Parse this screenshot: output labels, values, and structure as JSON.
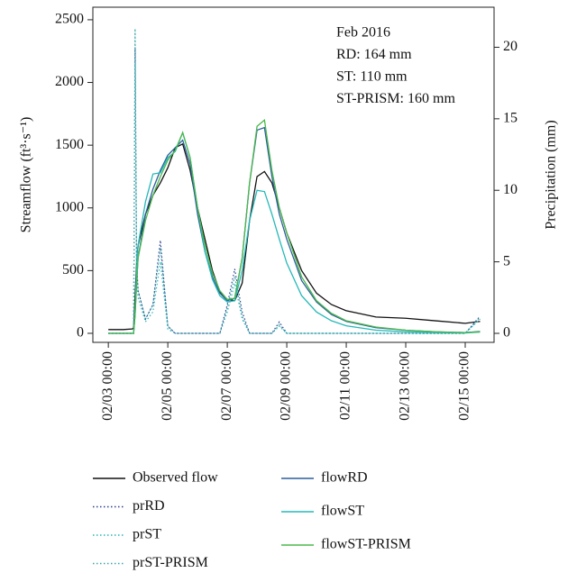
{
  "chart_data": {
    "type": "line",
    "annotations": [
      "Feb 2016",
      "RD: 164 mm",
      "ST: 110 mm",
      "ST-PRISM: 160 mm"
    ],
    "ylabel": "Streamflow (ft³·s⁻¹)",
    "y2label": "Precipitation (mm)",
    "x": [
      3.0,
      3.5,
      3.8,
      3.85,
      3.9,
      3.95,
      4.0,
      4.25,
      4.5,
      4.75,
      5.0,
      5.25,
      5.5,
      5.75,
      6.0,
      6.25,
      6.5,
      6.75,
      7.0,
      7.25,
      7.5,
      7.75,
      8.0,
      8.25,
      8.5,
      8.75,
      9.0,
      9.5,
      10.0,
      10.5,
      11.0,
      12.0,
      13.0,
      14.0,
      15.0,
      15.5
    ],
    "xlim": [
      2.48,
      15.97
    ],
    "xticks": [
      {
        "value": 3,
        "label": "02/03 00:00"
      },
      {
        "value": 5,
        "label": "02/05 00:00"
      },
      {
        "value": 7,
        "label": "02/07 00:00"
      },
      {
        "value": 9,
        "label": "02/09 00:00"
      },
      {
        "value": 11,
        "label": "02/11 00:00"
      },
      {
        "value": 13,
        "label": "02/13 00:00"
      },
      {
        "value": 15,
        "label": "02/15 00:00"
      }
    ],
    "ylim": [
      -72,
      2600
    ],
    "yticks": [
      0,
      500,
      1000,
      1500,
      2000,
      2500
    ],
    "y2lim": [
      -0.63,
      22.8
    ],
    "y2ticks": [
      0,
      5,
      10,
      15,
      20
    ],
    "series": [
      {
        "name": "Observed flow",
        "color": "#111111",
        "linestyle": "solid",
        "values": [
          30,
          30,
          35,
          40,
          300,
          550,
          700,
          950,
          1100,
          1200,
          1320,
          1480,
          1510,
          1300,
          1000,
          750,
          500,
          330,
          270,
          260,
          400,
          900,
          1250,
          1290,
          1200,
          1000,
          800,
          500,
          320,
          230,
          180,
          130,
          120,
          100,
          80,
          95
        ]
      },
      {
        "name": "prRD",
        "color": "#2b3f8f",
        "linestyle": "dotted",
        "axis": "y2",
        "values": [
          0,
          0,
          0,
          0,
          20,
          5,
          3,
          1,
          2,
          6.5,
          0.5,
          0,
          0,
          0,
          0,
          0,
          0,
          0,
          2,
          4.5,
          1.5,
          0,
          0,
          0,
          0,
          0.8,
          0,
          0,
          0,
          0,
          0,
          0,
          0,
          0,
          0,
          1.2
        ]
      },
      {
        "name": "prST",
        "color": "#26b5b5",
        "linestyle": "dotted",
        "axis": "y2",
        "values": [
          0,
          0,
          0,
          0,
          19,
          4,
          2.5,
          0.8,
          1.5,
          5,
          0.3,
          0,
          0,
          0,
          0,
          0,
          0,
          0,
          1.5,
          3.5,
          1,
          0,
          0,
          0,
          0,
          0.5,
          0,
          0,
          0,
          0,
          0,
          0,
          0,
          0,
          0,
          1.0
        ]
      },
      {
        "name": "prST-PRISM",
        "color": "#3aa3a8",
        "linestyle": "dotted",
        "axis": "y2",
        "values": [
          0,
          0,
          0,
          0,
          21.3,
          5,
          3,
          1,
          2,
          6,
          0.5,
          0,
          0,
          0,
          0,
          0,
          0,
          0,
          1.8,
          4,
          1.2,
          0,
          0,
          0,
          0,
          0.6,
          0,
          0,
          0,
          0,
          0,
          0,
          0,
          0,
          0,
          1.1
        ]
      },
      {
        "name": "flowRD",
        "color": "#2c5f9e",
        "linestyle": "solid",
        "values": [
          0,
          0,
          0,
          0,
          150,
          400,
          600,
          950,
          1150,
          1300,
          1420,
          1480,
          1540,
          1350,
          950,
          650,
          450,
          320,
          260,
          280,
          600,
          1200,
          1620,
          1640,
          1250,
          950,
          750,
          420,
          250,
          150,
          95,
          45,
          25,
          12,
          6,
          15
        ]
      },
      {
        "name": "flowST",
        "color": "#26b8b8",
        "linestyle": "solid",
        "values": [
          0,
          0,
          0,
          0,
          200,
          500,
          700,
          1050,
          1270,
          1280,
          1400,
          1450,
          1600,
          1400,
          1000,
          650,
          430,
          300,
          250,
          260,
          500,
          900,
          1140,
          1130,
          950,
          750,
          560,
          300,
          170,
          100,
          60,
          25,
          12,
          6,
          3,
          10
        ]
      },
      {
        "name": "flowST-PRISM",
        "color": "#4cb84c",
        "linestyle": "solid",
        "values": [
          0,
          0,
          0,
          0,
          150,
          400,
          600,
          900,
          1100,
          1250,
          1380,
          1460,
          1600,
          1400,
          1000,
          700,
          480,
          340,
          270,
          280,
          600,
          1200,
          1650,
          1700,
          1300,
          1000,
          800,
          450,
          260,
          160,
          100,
          50,
          25,
          12,
          6,
          12
        ]
      }
    ]
  }
}
